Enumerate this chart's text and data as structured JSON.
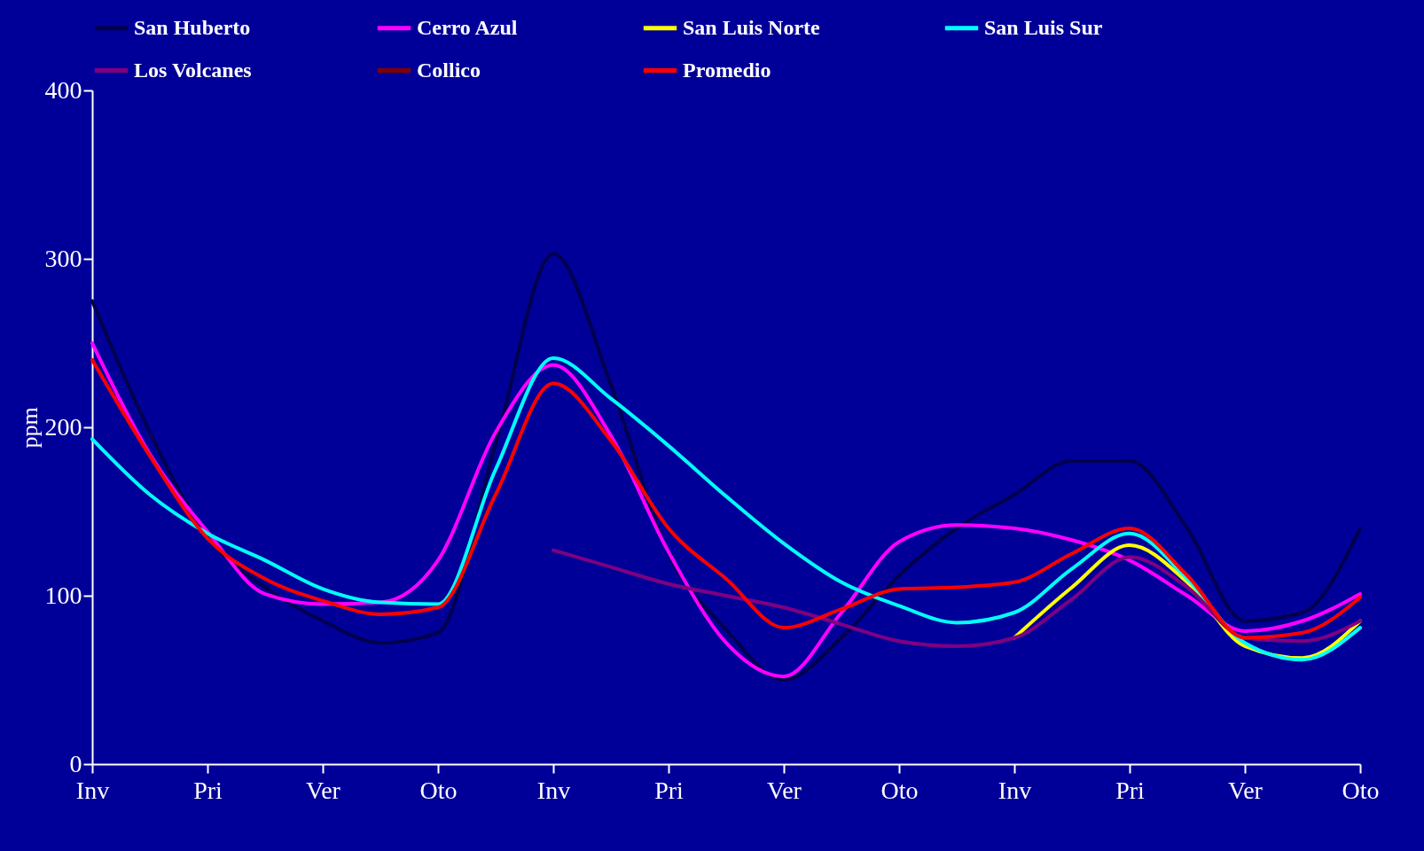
{
  "chart_data": {
    "type": "line",
    "ylabel": "ppm",
    "categories": [
      "Inv",
      null,
      "Pri",
      null,
      "Ver",
      null,
      "Oto",
      null,
      "Inv",
      null,
      "Pri",
      null,
      "Ver",
      null,
      "Oto",
      null,
      "Inv",
      null,
      "Pri",
      null,
      "Ver",
      null,
      "Oto"
    ],
    "series": [
      {
        "name": "San Huberto",
        "color": "#00004d",
        "values": [
          275,
          197,
          135,
          105,
          85,
          72,
          78,
          190,
          303,
          225,
          125,
          80,
          50,
          75,
          112,
          140,
          160,
          180,
          180,
          140,
          85,
          90,
          140
        ]
      },
      {
        "name": "Cerro Azul",
        "color": "#ff00ff",
        "values": [
          250,
          184,
          138,
          101,
          95,
          96,
          121,
          197,
          237,
          195,
          126,
          72,
          52,
          90,
          132,
          142,
          140,
          133,
          121,
          100,
          79,
          85,
          101
        ]
      },
      {
        "name": "San Luis Norte",
        "color": "#ffff00",
        "values": [
          null,
          null,
          null,
          null,
          null,
          null,
          null,
          null,
          null,
          null,
          null,
          null,
          null,
          null,
          null,
          null,
          75,
          105,
          130,
          108,
          70,
          63,
          85
        ]
      },
      {
        "name": "San Luis Sur",
        "color": "#00ffff",
        "values": [
          193,
          160,
          137,
          121,
          104,
          96,
          95,
          175,
          241,
          217,
          189,
          159,
          131,
          108,
          94,
          84,
          90,
          116,
          137,
          110,
          72,
          62,
          81
        ]
      },
      {
        "name": "Los Volcanes",
        "color": "#800080",
        "values": [
          null,
          null,
          null,
          null,
          null,
          null,
          null,
          null,
          127,
          117,
          107,
          100,
          93,
          83,
          73,
          70,
          75,
          98,
          123,
          105,
          75,
          73,
          85
        ]
      },
      {
        "name": "Collico",
        "color": "#800000",
        "values": [
          null,
          null,
          null,
          null,
          null,
          null,
          null,
          null,
          null,
          null,
          null,
          null,
          null,
          null,
          null,
          null,
          null,
          null,
          null,
          null,
          null,
          null,
          null
        ]
      },
      {
        "name": "Promedio",
        "color": "#ff0000",
        "values": [
          240,
          183,
          134,
          110,
          97,
          89,
          93,
          160,
          226,
          192,
          140,
          110,
          81,
          92,
          104,
          105,
          108,
          125,
          140,
          112,
          75,
          78,
          99
        ]
      }
    ],
    "ylim": [
      0,
      400
    ],
    "yticks": [
      0,
      100,
      200,
      300,
      400
    ],
    "legend": "top",
    "grid": false,
    "marker": "none",
    "line_style": "solid"
  }
}
